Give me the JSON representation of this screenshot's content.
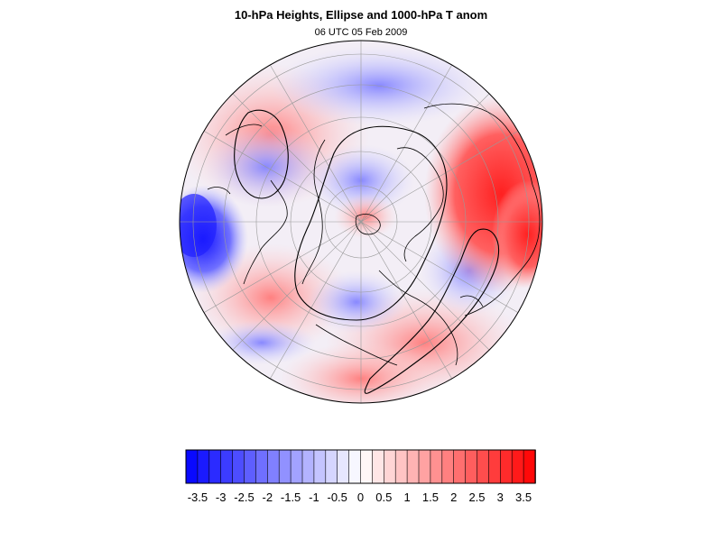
{
  "title": "10-hPa Heights, Ellipse and 1000-hPa T anom",
  "subtitle": "06 UTC 05 Feb 2009",
  "colorbar": {
    "min": -3.75,
    "max": 3.75,
    "step": 0.25,
    "low_color": "#0000ff",
    "mid_color": "#ffffff",
    "high_color": "#ff0000",
    "tick_labels": [
      "-3.5",
      "-3",
      "-2.5",
      "-2",
      "-1.5",
      "-1",
      "-0.5",
      "0",
      "0.5",
      "1",
      "1.5",
      "2",
      "2.5",
      "3",
      "3.5"
    ]
  },
  "map": {
    "projection": "orthographic polar (north pole)",
    "ocean_color": "#ffffff",
    "grid": true,
    "anomaly_regions": [
      {
        "name": "north-america-warm",
        "sign": "warm",
        "value": 2.5
      },
      {
        "name": "europe-cold",
        "sign": "cold",
        "value": -3.0
      },
      {
        "name": "asia-warm",
        "sign": "warm",
        "value": 1.5
      },
      {
        "name": "arctic-cold",
        "sign": "cold",
        "value": -1.0
      }
    ]
  }
}
